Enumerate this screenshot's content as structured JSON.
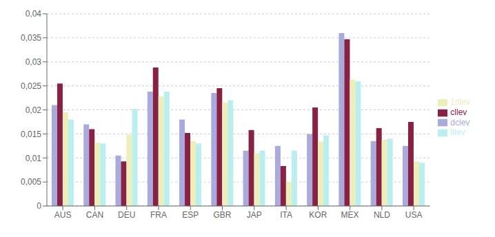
{
  "chart_data": {
    "type": "bar",
    "categories": [
      "AUS",
      "CAN",
      "DEU",
      "FRA",
      "ESP",
      "GBR",
      "JAP",
      "ITA",
      "KOR",
      "MEX",
      "NLD",
      "USA"
    ],
    "series": [
      {
        "name": "dclev",
        "color": "#aaaadd",
        "values": [
          0.021,
          0.017,
          0.0105,
          0.0238,
          0.018,
          0.0235,
          0.0115,
          0.0125,
          0.015,
          0.036,
          0.0135,
          0.0125
        ]
      },
      {
        "name": "cllev",
        "color": "#882244",
        "values": [
          0.0255,
          0.016,
          0.0093,
          0.0288,
          0.0152,
          0.0245,
          0.0158,
          0.0083,
          0.0205,
          0.0347,
          0.0162,
          0.0175
        ]
      },
      {
        "name": "1dlev",
        "color": "#eeeebb",
        "values": [
          0.0195,
          0.0132,
          0.0148,
          0.0228,
          0.0135,
          0.0215,
          0.011,
          0.005,
          0.0134,
          0.0263,
          0.0138,
          0.0093
        ]
      },
      {
        "name": "ltlev",
        "color": "#bbeeee",
        "values": [
          0.018,
          0.013,
          0.0202,
          0.0238,
          0.013,
          0.022,
          0.0115,
          0.0115,
          0.0147,
          0.026,
          0.014,
          0.009
        ]
      }
    ],
    "ylim": [
      0,
      0.04
    ],
    "yticks": [
      0,
      {
        "value": 0.005,
        "label": "0,005"
      },
      {
        "value": 0.01,
        "label": "0,01"
      },
      {
        "value": 0.015,
        "label": "0,015"
      },
      {
        "value": 0.02,
        "label": "0,02"
      },
      {
        "value": 0.025,
        "label": "0,025"
      },
      {
        "value": 0.03,
        "label": "0,03"
      },
      {
        "value": 0.035,
        "label": "0,035"
      },
      {
        "value": 0.04,
        "label": "0,04"
      }
    ],
    "grid": true,
    "legend": "right"
  }
}
